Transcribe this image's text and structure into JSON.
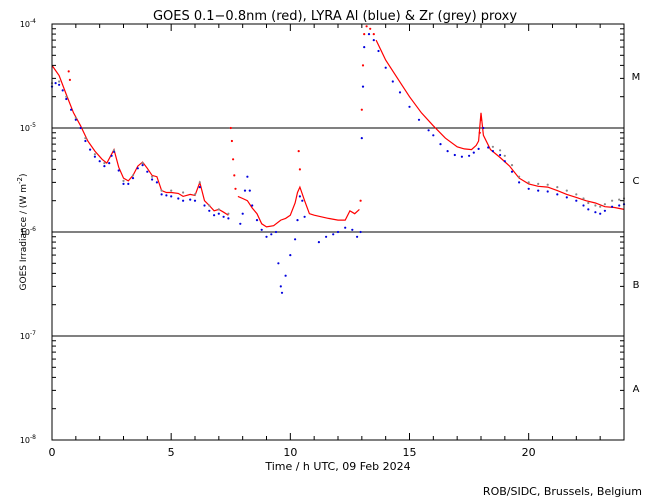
{
  "chart_data": {
    "type": "line",
    "title": "GOES 0.1−0.8nm (red), LYRA Al (blue) & Zr (grey) proxy",
    "xlabel": "Time / h UTC, 09 Feb 2024",
    "ylabel_main": "GOES Irradiance / (W m",
    "ylabel_sup": "-2",
    "ylabel_end": ")",
    "credit": "ROB/SIDC, Brussels, Belgium",
    "xlim": [
      0,
      24
    ],
    "ylim": [
      1e-08,
      0.0001
    ],
    "yscale": "log",
    "x_ticks": [
      {
        "value": 0,
        "label": "0"
      },
      {
        "value": 5,
        "label": "5"
      },
      {
        "value": 10,
        "label": "10"
      },
      {
        "value": 15,
        "label": "15"
      },
      {
        "value": 20,
        "label": "20"
      }
    ],
    "y_ticks": [
      {
        "value": 1e-08,
        "base": "10",
        "exp": "-8"
      },
      {
        "value": 1e-07,
        "base": "10",
        "exp": "-7"
      },
      {
        "value": 1e-06,
        "base": "10",
        "exp": "-6"
      },
      {
        "value": 1e-05,
        "base": "10",
        "exp": "-5"
      },
      {
        "value": 0.0001,
        "base": "10",
        "exp": "-4"
      }
    ],
    "class_lines": [
      1e-07,
      1e-06,
      1e-05
    ],
    "flare_classes": [
      {
        "label": "A",
        "center": 3.16e-08
      },
      {
        "label": "B",
        "center": 3.16e-07
      },
      {
        "label": "C",
        "center": 3.16e-06
      },
      {
        "label": "M",
        "center": 3.16e-05
      }
    ],
    "series": [
      {
        "name": "GOES 0.1-0.8nm",
        "color": "#ff0000",
        "style": "line",
        "points": [
          [
            0.0,
            4e-05
          ],
          [
            0.3,
            3.2e-05
          ],
          [
            0.6,
            2.1e-05
          ],
          [
            0.9,
            1.4e-05
          ],
          [
            1.2,
            1.05e-05
          ],
          [
            1.5,
            7.5e-06
          ],
          [
            1.8,
            6e-06
          ],
          [
            2.1,
            5e-06
          ],
          [
            2.3,
            4.6e-06
          ],
          [
            2.5,
            5.6e-06
          ],
          [
            2.6,
            6.2e-06
          ],
          [
            2.8,
            4.2e-06
          ],
          [
            3.0,
            3.3e-06
          ],
          [
            3.2,
            3.1e-06
          ],
          [
            3.4,
            3.5e-06
          ],
          [
            3.6,
            4.3e-06
          ],
          [
            3.8,
            4.7e-06
          ],
          [
            4.0,
            4.1e-06
          ],
          [
            4.2,
            3.5e-06
          ],
          [
            4.4,
            3.4e-06
          ],
          [
            4.6,
            2.5e-06
          ],
          [
            4.8,
            2.4e-06
          ],
          [
            5.0,
            2.4e-06
          ],
          [
            5.3,
            2.35e-06
          ],
          [
            5.5,
            2.2e-06
          ],
          [
            5.8,
            2.3e-06
          ],
          [
            6.0,
            2.25e-06
          ],
          [
            6.2,
            3e-06
          ],
          [
            6.4,
            2e-06
          ],
          [
            6.6,
            1.8e-06
          ],
          [
            6.8,
            1.6e-06
          ],
          [
            7.0,
            1.65e-06
          ],
          [
            7.2,
            1.55e-06
          ],
          [
            7.4,
            1.45e-06
          ]
        ]
      },
      {
        "name": "GOES 0.1-0.8nm",
        "color": "#ff0000",
        "style": "line",
        "points": [
          [
            7.8,
            2.2e-06
          ],
          [
            8.0,
            2.1e-06
          ],
          [
            8.2,
            2e-06
          ],
          [
            8.4,
            1.7e-06
          ],
          [
            8.6,
            1.5e-06
          ],
          [
            8.8,
            1.2e-06
          ],
          [
            9.0,
            1.12e-06
          ],
          [
            9.3,
            1.15e-06
          ],
          [
            9.6,
            1.3e-06
          ],
          [
            9.8,
            1.35e-06
          ],
          [
            10.0,
            1.45e-06
          ],
          [
            10.2,
            1.9e-06
          ],
          [
            10.3,
            2.4e-06
          ],
          [
            10.4,
            2.7e-06
          ],
          [
            10.6,
            2e-06
          ],
          [
            10.8,
            1.5e-06
          ],
          [
            11.0,
            1.45e-06
          ],
          [
            11.3,
            1.4e-06
          ],
          [
            11.6,
            1.35e-06
          ],
          [
            12.0,
            1.3e-06
          ],
          [
            12.3,
            1.3e-06
          ],
          [
            12.5,
            1.6e-06
          ],
          [
            12.7,
            1.5e-06
          ],
          [
            12.9,
            1.65e-06
          ]
        ]
      },
      {
        "name": "GOES 0.1-0.8nm",
        "color": "#ff0000",
        "style": "line",
        "points": [
          [
            13.6,
            7e-05
          ],
          [
            14.0,
            4.5e-05
          ],
          [
            14.5,
            3e-05
          ],
          [
            15.0,
            2e-05
          ],
          [
            15.5,
            1.4e-05
          ],
          [
            16.0,
            1.05e-05
          ],
          [
            16.5,
            8e-06
          ],
          [
            17.0,
            6.6e-06
          ],
          [
            17.3,
            6.3e-06
          ],
          [
            17.6,
            6.2e-06
          ],
          [
            17.8,
            6.8e-06
          ],
          [
            17.9,
            7.5e-06
          ],
          [
            18.0,
            1.4e-05
          ],
          [
            18.1,
            8.5e-06
          ],
          [
            18.4,
            6.2e-06
          ],
          [
            18.8,
            5.2e-06
          ],
          [
            19.2,
            4.3e-06
          ],
          [
            19.6,
            3.3e-06
          ],
          [
            20.0,
            2.9e-06
          ],
          [
            20.4,
            2.75e-06
          ],
          [
            20.8,
            2.7e-06
          ],
          [
            21.2,
            2.5e-06
          ],
          [
            21.6,
            2.3e-06
          ],
          [
            22.0,
            2.15e-06
          ],
          [
            22.4,
            2e-06
          ],
          [
            22.8,
            1.9e-06
          ],
          [
            23.2,
            1.75e-06
          ],
          [
            23.6,
            1.72e-06
          ],
          [
            24.0,
            1.65e-06
          ]
        ]
      },
      {
        "name": "GOES 0.1-0.8nm",
        "color": "#ff0000",
        "style": "dots",
        "points": [
          [
            0.7,
            3.5e-05
          ],
          [
            0.75,
            2.9e-05
          ],
          [
            7.5,
            1e-05
          ],
          [
            7.55,
            7.5e-06
          ],
          [
            7.6,
            5e-06
          ],
          [
            7.65,
            3.5e-06
          ],
          [
            7.7,
            2.6e-06
          ],
          [
            10.35,
            6e-06
          ],
          [
            10.4,
            4e-06
          ],
          [
            12.95,
            2e-06
          ],
          [
            13.0,
            1.5e-05
          ],
          [
            13.05,
            4e-05
          ],
          [
            13.1,
            8e-05
          ],
          [
            13.2,
            9.5e-05
          ],
          [
            13.35,
            9e-05
          ],
          [
            13.5,
            8e-05
          ],
          [
            17.95,
            9e-06
          ],
          [
            18.0,
            1.2e-05
          ]
        ]
      },
      {
        "name": "LYRA Al",
        "color": "#0000dd",
        "style": "dots",
        "points": [
          [
            0.0,
            2.5e-05
          ],
          [
            0.15,
            2.7e-05
          ],
          [
            0.3,
            2.6e-05
          ],
          [
            0.45,
            2.3e-05
          ],
          [
            0.6,
            1.9e-05
          ],
          [
            0.8,
            1.5e-05
          ],
          [
            1.0,
            1.2e-05
          ],
          [
            1.2,
            1e-05
          ],
          [
            1.4,
            7.5e-06
          ],
          [
            1.6,
            6.2e-06
          ],
          [
            1.8,
            5.3e-06
          ],
          [
            2.0,
            4.8e-06
          ],
          [
            2.2,
            4.3e-06
          ],
          [
            2.4,
            4.6e-06
          ],
          [
            2.5,
            5.4e-06
          ],
          [
            2.6,
            5.9e-06
          ],
          [
            2.8,
            3.9e-06
          ],
          [
            3.0,
            2.9e-06
          ],
          [
            3.2,
            2.9e-06
          ],
          [
            3.4,
            3.3e-06
          ],
          [
            3.6,
            4.1e-06
          ],
          [
            3.8,
            4.4e-06
          ],
          [
            4.0,
            3.8e-06
          ],
          [
            4.2,
            3.2e-06
          ],
          [
            4.4,
            3e-06
          ],
          [
            4.6,
            2.3e-06
          ],
          [
            4.8,
            2.25e-06
          ],
          [
            5.0,
            2.2e-06
          ],
          [
            5.3,
            2.1e-06
          ],
          [
            5.5,
            2e-06
          ],
          [
            5.8,
            2.05e-06
          ],
          [
            6.0,
            2e-06
          ],
          [
            6.2,
            2.7e-06
          ],
          [
            6.4,
            1.8e-06
          ],
          [
            6.6,
            1.6e-06
          ],
          [
            6.8,
            1.45e-06
          ],
          [
            7.0,
            1.5e-06
          ],
          [
            7.2,
            1.4e-06
          ],
          [
            7.4,
            1.35e-06
          ],
          [
            7.9,
            1.2e-06
          ],
          [
            8.0,
            1.5e-06
          ],
          [
            8.1,
            2.5e-06
          ],
          [
            8.2,
            3.4e-06
          ],
          [
            8.3,
            2.5e-06
          ],
          [
            8.4,
            1.8e-06
          ],
          [
            8.6,
            1.3e-06
          ],
          [
            8.8,
            1.05e-06
          ],
          [
            9.0,
            9e-07
          ],
          [
            9.2,
            9.5e-07
          ],
          [
            9.4,
            1e-06
          ],
          [
            9.5,
            5e-07
          ],
          [
            9.6,
            3e-07
          ],
          [
            9.65,
            2.6e-07
          ],
          [
            9.8,
            3.8e-07
          ],
          [
            10.0,
            6e-07
          ],
          [
            10.2,
            8.5e-07
          ],
          [
            10.3,
            1.3e-06
          ],
          [
            10.4,
            2.2e-06
          ],
          [
            10.5,
            2e-06
          ],
          [
            10.6,
            1.4e-06
          ],
          [
            11.2,
            8e-07
          ],
          [
            11.5,
            9e-07
          ],
          [
            11.8,
            9.5e-07
          ],
          [
            12.0,
            1e-06
          ],
          [
            12.3,
            1.1e-06
          ],
          [
            12.6,
            1.05e-06
          ],
          [
            12.8,
            9e-07
          ],
          [
            12.95,
            1e-06
          ],
          [
            13.0,
            8e-06
          ],
          [
            13.05,
            2.5e-05
          ],
          [
            13.1,
            6e-05
          ],
          [
            13.3,
            8e-05
          ],
          [
            13.5,
            7e-05
          ],
          [
            13.7,
            5.5e-05
          ],
          [
            14.0,
            3.8e-05
          ],
          [
            14.3,
            2.8e-05
          ],
          [
            14.6,
            2.2e-05
          ],
          [
            15.0,
            1.6e-05
          ],
          [
            15.4,
            1.2e-05
          ],
          [
            15.8,
            9.5e-06
          ],
          [
            16.0,
            8.5e-06
          ],
          [
            16.3,
            7e-06
          ],
          [
            16.6,
            6e-06
          ],
          [
            16.9,
            5.5e-06
          ],
          [
            17.2,
            5.3e-06
          ],
          [
            17.5,
            5.4e-06
          ],
          [
            17.7,
            5.8e-06
          ],
          [
            17.9,
            6.3e-06
          ],
          [
            18.1,
            1e-05
          ],
          [
            18.3,
            6.5e-06
          ],
          [
            18.5,
            6e-06
          ],
          [
            18.8,
            5.5e-06
          ],
          [
            19.0,
            4.8e-06
          ],
          [
            19.3,
            3.8e-06
          ],
          [
            19.6,
            3e-06
          ],
          [
            20.0,
            2.6e-06
          ],
          [
            20.4,
            2.5e-06
          ],
          [
            20.8,
            2.45e-06
          ],
          [
            21.2,
            2.3e-06
          ],
          [
            21.6,
            2.15e-06
          ],
          [
            22.0,
            2e-06
          ],
          [
            22.3,
            1.8e-06
          ],
          [
            22.5,
            1.65e-06
          ],
          [
            22.8,
            1.55e-06
          ],
          [
            23.0,
            1.5e-06
          ],
          [
            23.2,
            1.6e-06
          ],
          [
            23.5,
            1.75e-06
          ],
          [
            23.8,
            1.8e-06
          ],
          [
            24.0,
            1.85e-06
          ]
        ]
      },
      {
        "name": "Zr",
        "color": "#888888",
        "style": "dots",
        "points": [
          [
            0.0,
            2.7e-05
          ],
          [
            0.3,
            2.8e-05
          ],
          [
            0.6,
            2e-05
          ],
          [
            1.0,
            1.25e-05
          ],
          [
            1.4,
            8e-06
          ],
          [
            1.8,
            5.6e-06
          ],
          [
            2.2,
            4.6e-06
          ],
          [
            2.6,
            6.1e-06
          ],
          [
            3.0,
            3.1e-06
          ],
          [
            3.4,
            3.5e-06
          ],
          [
            3.8,
            4.6e-06
          ],
          [
            4.2,
            3.4e-06
          ],
          [
            4.6,
            2.5e-06
          ],
          [
            5.0,
            2.5e-06
          ],
          [
            5.5,
            2.4e-06
          ],
          [
            6.0,
            2.3e-06
          ],
          [
            6.2,
            3e-06
          ],
          [
            6.6,
            1.8e-06
          ],
          [
            7.0,
            1.65e-06
          ],
          [
            7.4,
            1.5e-06
          ],
          [
            18.5,
            6.6e-06
          ],
          [
            18.8,
            6.1e-06
          ],
          [
            19.0,
            5.4e-06
          ],
          [
            19.3,
            4.4e-06
          ],
          [
            19.6,
            3.4e-06
          ],
          [
            20.0,
            3e-06
          ],
          [
            20.4,
            2.9e-06
          ],
          [
            20.8,
            2.85e-06
          ],
          [
            21.2,
            2.7e-06
          ],
          [
            21.6,
            2.5e-06
          ],
          [
            22.0,
            2.3e-06
          ],
          [
            22.3,
            2.1e-06
          ],
          [
            22.5,
            1.9e-06
          ],
          [
            22.8,
            1.8e-06
          ],
          [
            23.0,
            1.75e-06
          ],
          [
            23.2,
            1.85e-06
          ],
          [
            23.5,
            2e-06
          ],
          [
            23.8,
            2.05e-06
          ],
          [
            24.0,
            2.1e-06
          ]
        ]
      }
    ]
  }
}
